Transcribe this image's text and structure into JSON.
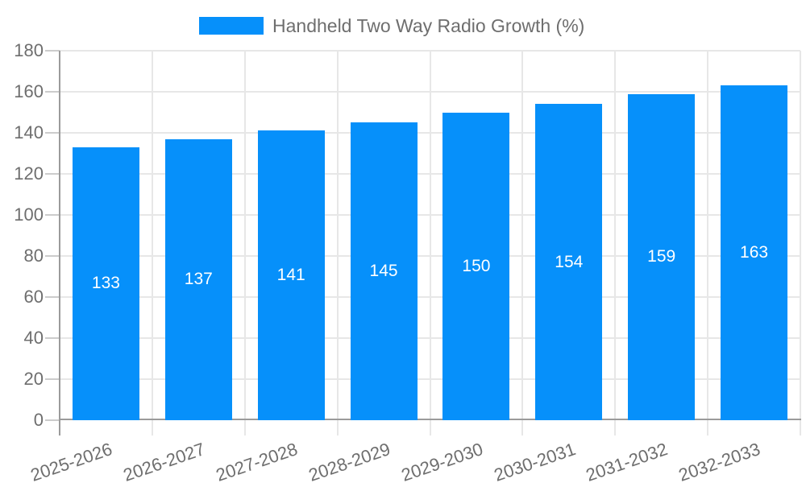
{
  "legend": {
    "label": "Handheld Two Way Radio Growth (%)"
  },
  "chart_data": {
    "type": "bar",
    "title": "Handheld Two Way Radio Growth (%)",
    "categories": [
      "2025-2026",
      "2026-2027",
      "2027-2028",
      "2028-2029",
      "2029-2030",
      "2030-2031",
      "2031-2032",
      "2032-2033"
    ],
    "values": [
      133,
      137,
      141,
      145,
      150,
      154,
      159,
      163
    ],
    "xlabel": "",
    "ylabel": "",
    "ylim": [
      0,
      180
    ],
    "ytick_step": 20,
    "grid": true,
    "legend_position": "top",
    "value_label_position": "inside-center",
    "colors": {
      "bar": "#0690fa",
      "axis_text": "#6e6e6e",
      "value_label": "#ffffff",
      "gridline": "#e7e7e7",
      "axis_line": "#9b9b9b",
      "tick": "#cccccc"
    }
  }
}
